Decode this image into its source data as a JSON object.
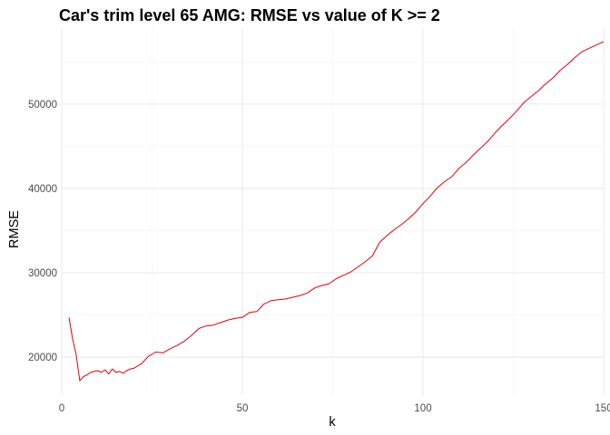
{
  "chart_data": {
    "type": "line",
    "title": "Car's trim level 65 AMG: RMSE vs value of K >= 2",
    "xlabel": "k",
    "ylabel": "RMSE",
    "xlim": [
      0,
      150
    ],
    "ylim": [
      15500,
      59000
    ],
    "x_ticks": [
      0,
      50,
      100,
      150
    ],
    "y_ticks": [
      20000,
      30000,
      40000,
      50000
    ],
    "x_tick_labels": [
      "0",
      "50",
      "100",
      "150"
    ],
    "y_tick_labels": [
      "20000",
      "30000",
      "40000",
      "50000"
    ],
    "grid": true,
    "legend": "none",
    "series": [
      {
        "color": "#e0000a",
        "x": [
          2,
          3,
          4,
          5,
          6,
          7,
          8,
          9,
          10,
          11,
          12,
          13,
          14,
          15,
          16,
          17,
          18,
          19,
          20,
          22,
          24,
          26,
          28,
          30,
          32,
          34,
          36,
          38,
          40,
          42,
          44,
          46,
          48,
          50,
          52,
          54,
          56,
          58,
          60,
          62,
          64,
          66,
          68,
          70,
          72,
          74,
          76,
          78,
          80,
          82,
          84,
          86,
          88,
          90,
          92,
          94,
          96,
          98,
          100,
          102,
          104,
          106,
          108,
          110,
          112,
          114,
          116,
          118,
          120,
          122,
          124,
          126,
          128,
          130,
          132,
          134,
          136,
          138,
          140,
          142,
          144,
          146,
          148,
          150
        ],
        "values": [
          24700,
          22200,
          20300,
          17200,
          17700,
          17900,
          18200,
          18300,
          18400,
          18200,
          18500,
          18000,
          18600,
          18200,
          18300,
          18100,
          18400,
          18600,
          18700,
          19200,
          20100,
          20600,
          20500,
          21000,
          21400,
          21900,
          22600,
          23400,
          23700,
          23800,
          24100,
          24400,
          24600,
          24700,
          25300,
          25400,
          26300,
          26700,
          26800,
          26900,
          27100,
          27300,
          27600,
          28200,
          28500,
          28700,
          29300,
          29700,
          30100,
          30700,
          31300,
          32000,
          33600,
          34400,
          35100,
          35700,
          36400,
          37200,
          38200,
          39100,
          40100,
          40800,
          41400,
          42400,
          43100,
          44000,
          44800,
          45600,
          46600,
          47500,
          48300,
          49200,
          50200,
          50900,
          51600,
          52400,
          53100,
          54000,
          54700,
          55500,
          56200,
          56600,
          57000,
          57400
        ]
      }
    ]
  }
}
